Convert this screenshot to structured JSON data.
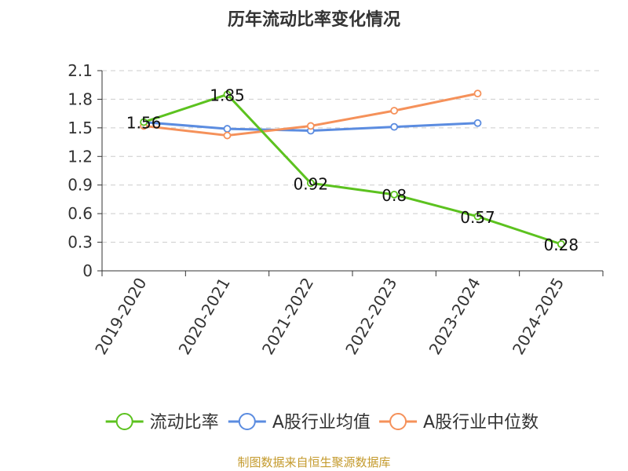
{
  "chart_data": {
    "type": "line",
    "title": "历年流动比率变化情况",
    "categories": [
      "2019-2020",
      "2020-2021",
      "2021-2022",
      "2022-2023",
      "2023-2024",
      "2024-2025"
    ],
    "ylim": [
      0,
      2.1
    ],
    "yticks": [
      "0",
      "0.3",
      "0.6",
      "0.9",
      "1.2",
      "1.5",
      "1.8",
      "2.1"
    ],
    "grid": true,
    "legend_position": "bottom",
    "series": [
      {
        "name": "流动比率",
        "color": "#5cc21f",
        "values": [
          1.56,
          1.85,
          0.92,
          0.8,
          0.57,
          0.28
        ],
        "labels": [
          "1.56",
          "1.85",
          "0.92",
          "0.8",
          "0.57",
          "0.28"
        ]
      },
      {
        "name": "A股行业均值",
        "color": "#5b8ce0",
        "values": [
          1.56,
          1.49,
          1.47,
          1.51,
          1.55,
          null
        ]
      },
      {
        "name": "A股行业中位数",
        "color": "#f5915a",
        "values": [
          1.52,
          1.42,
          1.52,
          1.68,
          1.86,
          null
        ]
      }
    ]
  },
  "footer": {
    "source": "制图数据来自恒生聚源数据库"
  }
}
